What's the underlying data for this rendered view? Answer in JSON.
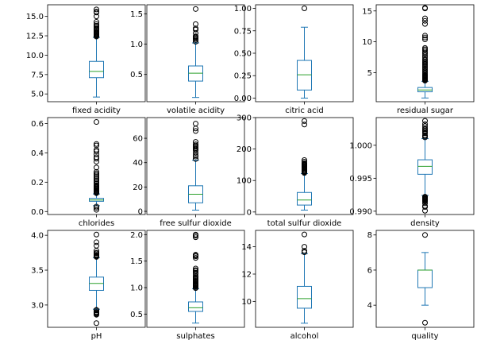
{
  "colors": {
    "box": "#1f77b4",
    "median": "#2ca02c",
    "flier": "#000000",
    "frame": "#000000",
    "background": "#ffffff"
  },
  "chart_data": [
    {
      "type": "box",
      "xlabel": "fixed acidity",
      "ylim": [
        4.0,
        16.5
      ],
      "yticks": [
        5.0,
        7.5,
        10.0,
        12.5,
        15.0
      ],
      "ytick_labels": [
        "5.0",
        "7.5",
        "10.0",
        "12.5",
        "15.0"
      ],
      "whisker_low": 4.6,
      "q1": 7.1,
      "median": 7.9,
      "q3": 9.2,
      "whisker_high": 12.3,
      "fliers": [
        12.4,
        12.5,
        12.6,
        12.7,
        12.8,
        12.9,
        13.0,
        13.2,
        13.3,
        13.4,
        13.5,
        13.7,
        13.8,
        14.0,
        14.3,
        15.0,
        15.5,
        15.6,
        15.9
      ]
    },
    {
      "type": "box",
      "xlabel": "volatile acidity",
      "ylim": [
        0.05,
        1.65
      ],
      "yticks": [
        0.5,
        1.0,
        1.5
      ],
      "ytick_labels": [
        "0.5",
        "1.0",
        "1.5"
      ],
      "whisker_low": 0.12,
      "q1": 0.39,
      "median": 0.52,
      "q3": 0.64,
      "whisker_high": 1.02,
      "fliers": [
        1.04,
        1.07,
        1.09,
        1.1,
        1.12,
        1.13,
        1.18,
        1.24,
        1.26,
        1.33,
        1.58
      ]
    },
    {
      "type": "box",
      "xlabel": "citric acid",
      "ylim": [
        -0.04,
        1.04
      ],
      "yticks": [
        0.0,
        0.25,
        0.5,
        0.75,
        1.0
      ],
      "ytick_labels": [
        "0.00",
        "0.25",
        "0.50",
        "0.75",
        "1.00"
      ],
      "whisker_low": 0.0,
      "q1": 0.09,
      "median": 0.26,
      "q3": 0.42,
      "whisker_high": 0.79,
      "fliers": [
        1.0
      ]
    },
    {
      "type": "box",
      "xlabel": "residual sugar",
      "ylim": [
        0.3,
        16.0
      ],
      "yticks": [
        5,
        10,
        15
      ],
      "ytick_labels": [
        "5",
        "10",
        "15"
      ],
      "whisker_low": 0.9,
      "q1": 1.9,
      "median": 2.2,
      "q3": 2.6,
      "whisker_high": 3.6,
      "fliers": [
        3.7,
        3.8,
        3.9,
        4.0,
        4.1,
        4.2,
        4.3,
        4.4,
        4.5,
        4.6,
        4.8,
        5.0,
        5.2,
        5.4,
        5.6,
        5.8,
        6.0,
        6.2,
        6.4,
        6.6,
        6.8,
        7.0,
        7.2,
        7.5,
        7.8,
        8.1,
        8.3,
        8.6,
        8.8,
        9.0,
        10.4,
        10.7,
        11.0,
        12.9,
        13.4,
        13.8,
        15.4,
        15.5
      ]
    },
    {
      "type": "box",
      "xlabel": "chlorides",
      "ylim": [
        -0.02,
        0.64
      ],
      "yticks": [
        0.0,
        0.2,
        0.4,
        0.6
      ],
      "ytick_labels": [
        "0.0",
        "0.2",
        "0.4",
        "0.6"
      ],
      "whisker_low": 0.04,
      "q1": 0.07,
      "median": 0.079,
      "q3": 0.09,
      "whisker_high": 0.12,
      "fliers": [
        0.012,
        0.025,
        0.034,
        0.125,
        0.13,
        0.135,
        0.14,
        0.145,
        0.15,
        0.155,
        0.16,
        0.165,
        0.17,
        0.175,
        0.18,
        0.19,
        0.2,
        0.21,
        0.22,
        0.23,
        0.24,
        0.25,
        0.26,
        0.27,
        0.3,
        0.34,
        0.36,
        0.37,
        0.39,
        0.41,
        0.42,
        0.45,
        0.46,
        0.61
      ]
    },
    {
      "type": "box",
      "xlabel": "free sulfur dioxide",
      "ylim": [
        -2.6,
        77
      ],
      "yticks": [
        0,
        20,
        40,
        60
      ],
      "ytick_labels": [
        "0",
        "20",
        "40",
        "60"
      ],
      "whisker_low": 1,
      "q1": 7,
      "median": 14,
      "q3": 21,
      "whisker_high": 42,
      "fliers": [
        43,
        45,
        46,
        48,
        50,
        51,
        52,
        53,
        54,
        55,
        57,
        66,
        68,
        72
      ]
    },
    {
      "type": "box",
      "xlabel": "total sulfur dioxide",
      "ylim": [
        -8,
        300
      ],
      "yticks": [
        0,
        100,
        200,
        300
      ],
      "ytick_labels": [
        "0",
        "100",
        "200",
        "300"
      ],
      "whisker_low": 6,
      "q1": 22,
      "median": 38,
      "q3": 62,
      "whisker_high": 122,
      "fliers": [
        124,
        126,
        128,
        130,
        133,
        135,
        138,
        141,
        143,
        145,
        147,
        149,
        151,
        153,
        155,
        160,
        165,
        278,
        289
      ]
    },
    {
      "type": "box",
      "xlabel": "density",
      "ylim": [
        0.9895,
        1.0042
      ],
      "yticks": [
        0.99,
        0.995,
        1.0
      ],
      "ytick_labels": [
        "0.990",
        "0.995",
        "1.000"
      ],
      "whisker_low": 0.9924,
      "q1": 0.9956,
      "median": 0.9968,
      "q3": 0.9978,
      "whisker_high": 1.001,
      "fliers": [
        0.99007,
        0.99064,
        0.9908,
        0.9912,
        0.9915,
        0.9916,
        0.9917,
        0.9918,
        0.9919,
        0.992,
        0.9921,
        0.9922,
        1.0012,
        1.0014,
        1.0015,
        1.0018,
        1.002,
        1.0022,
        1.0024,
        1.0026,
        1.0029,
        1.0032,
        1.0037
      ]
    },
    {
      "type": "box",
      "xlabel": "pH",
      "ylim": [
        2.68,
        4.07
      ],
      "yticks": [
        3.0,
        3.5,
        4.0
      ],
      "ytick_labels": [
        "3.0",
        "3.5",
        "4.0"
      ],
      "whisker_low": 2.94,
      "q1": 3.21,
      "median": 3.31,
      "q3": 3.4,
      "whisker_high": 3.68,
      "fliers": [
        2.74,
        2.86,
        2.87,
        2.88,
        2.89,
        2.9,
        2.92,
        2.93,
        3.69,
        3.7,
        3.71,
        3.72,
        3.74,
        3.75,
        3.78,
        3.85,
        3.9,
        4.01
      ]
    },
    {
      "type": "box",
      "xlabel": "sulphates",
      "ylim": [
        0.25,
        2.08
      ],
      "yticks": [
        0.5,
        1.0,
        1.5,
        2.0
      ],
      "ytick_labels": [
        "0.5",
        "1.0",
        "1.5",
        "2.0"
      ],
      "whisker_low": 0.33,
      "q1": 0.55,
      "median": 0.62,
      "q3": 0.73,
      "whisker_high": 0.98,
      "fliers": [
        0.99,
        1.0,
        1.02,
        1.03,
        1.04,
        1.05,
        1.06,
        1.07,
        1.08,
        1.1,
        1.12,
        1.14,
        1.16,
        1.18,
        1.2,
        1.22,
        1.26,
        1.28,
        1.31,
        1.33,
        1.36,
        1.56,
        1.59,
        1.61,
        1.62,
        1.95,
        1.98,
        2.0
      ]
    },
    {
      "type": "box",
      "xlabel": "alcohol",
      "ylim": [
        8.1,
        15.2
      ],
      "yticks": [
        10,
        12,
        14
      ],
      "ytick_labels": [
        "10",
        "12",
        "14"
      ],
      "whisker_low": 8.4,
      "q1": 9.5,
      "median": 10.2,
      "q3": 11.1,
      "whisker_high": 13.5,
      "fliers": [
        13.6,
        13.7,
        14.0,
        14.9
      ]
    },
    {
      "type": "box",
      "xlabel": "quality",
      "ylim": [
        2.74,
        8.26
      ],
      "yticks": [
        4,
        6,
        8
      ],
      "ytick_labels": [
        "4",
        "6",
        "8"
      ],
      "whisker_low": 4,
      "q1": 5,
      "median": 6,
      "q3": 6,
      "whisker_high": 7,
      "fliers": [
        3,
        8
      ]
    }
  ]
}
